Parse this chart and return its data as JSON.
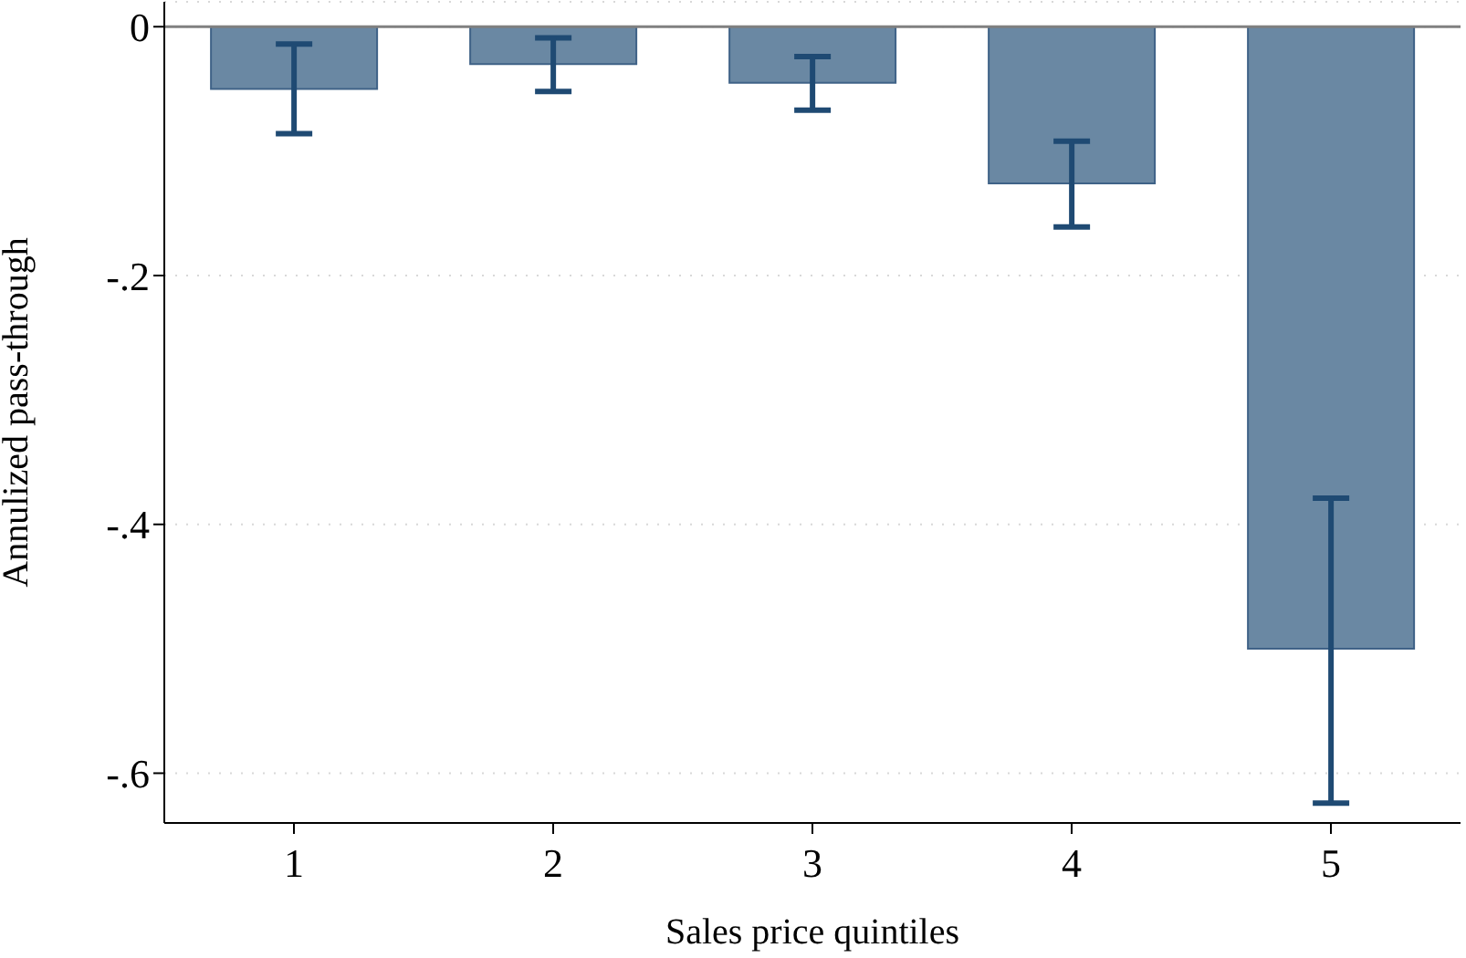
{
  "chart_data": {
    "type": "bar",
    "xlabel": "Sales price quintiles",
    "ylabel": "Annulized pass-through",
    "categories": [
      "1",
      "2",
      "3",
      "4",
      "5"
    ],
    "values": [
      -0.05,
      -0.03,
      -0.045,
      -0.126,
      -0.5
    ],
    "errors": [
      [
        -0.086,
        -0.014
      ],
      [
        -0.052,
        -0.009
      ],
      [
        -0.067,
        -0.024
      ],
      [
        -0.161,
        -0.092
      ],
      [
        -0.624,
        -0.379
      ]
    ],
    "color": "#6a88a3",
    "ylim": [
      -0.64,
      0.02
    ],
    "yticks": [
      {
        "value": 0,
        "label": "0"
      },
      {
        "value": -0.2,
        "label": "-.2"
      },
      {
        "value": -0.4,
        "label": "-.4"
      },
      {
        "value": -0.6,
        "label": "-.6"
      }
    ],
    "grid": "y",
    "ref_lines": [
      {
        "axis": "y",
        "value": 0,
        "color": "#808080"
      }
    ]
  }
}
